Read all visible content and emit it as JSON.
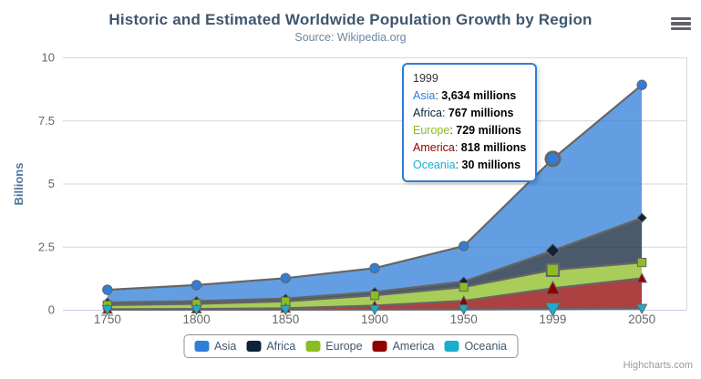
{
  "header": {
    "title": "Historic and Estimated Worldwide Population Growth by Region",
    "subtitle": "Source: Wikipedia.org"
  },
  "credits": "Highcharts.com",
  "chart_data": {
    "type": "area",
    "stacking": "normal",
    "title": "Historic and Estimated Worldwide Population Growth by Region",
    "subtitle": "Source: Wikipedia.org",
    "categories": [
      "1750",
      "1800",
      "1850",
      "1900",
      "1950",
      "1999",
      "2050"
    ],
    "xlabel": "",
    "ylabel": "Billions",
    "unit": "millions",
    "ylim": [
      0,
      10
    ],
    "yticks": [
      0,
      2.5,
      5,
      7.5,
      10
    ],
    "ytick_labels": [
      "0",
      "2.5",
      "5",
      "7.5",
      "10"
    ],
    "grid": "horizontal",
    "legend_position": "bottom",
    "hover_index": 5,
    "line_color": "#666666",
    "fill_opacity": 0.75,
    "series": [
      {
        "name": "Asia",
        "color": "#2f7ed8",
        "marker": "circle",
        "values": [
          502,
          635,
          809,
          947,
          1402,
          3634,
          5268
        ]
      },
      {
        "name": "Africa",
        "color": "#0d233a",
        "marker": "diamond",
        "values": [
          106,
          107,
          111,
          133,
          221,
          767,
          1766
        ]
      },
      {
        "name": "Europe",
        "color": "#8bbc21",
        "marker": "square",
        "values": [
          163,
          203,
          276,
          408,
          547,
          729,
          628
        ]
      },
      {
        "name": "America",
        "color": "#910000",
        "marker": "triangle",
        "values": [
          18,
          31,
          54,
          156,
          339,
          818,
          1201
        ]
      },
      {
        "name": "Oceania",
        "color": "#1aadce",
        "marker": "triangle-down",
        "values": [
          2,
          2,
          2,
          6,
          13,
          30,
          46
        ]
      }
    ]
  },
  "tooltip": {
    "header": "1999",
    "border_color": "#2f7ed8",
    "rows": [
      {
        "name": "Asia",
        "color": "#2f7ed8",
        "value": "3,634 millions"
      },
      {
        "name": "Africa",
        "color": "#0d233a",
        "value": "767 millions"
      },
      {
        "name": "Europe",
        "color": "#8bbc21",
        "value": "729 millions"
      },
      {
        "name": "America",
        "color": "#910000",
        "value": "818 millions"
      },
      {
        "name": "Oceania",
        "color": "#1aadce",
        "value": "30 millions"
      }
    ]
  },
  "legend": {
    "items": [
      {
        "label": "Asia",
        "color": "#2f7ed8"
      },
      {
        "label": "Africa",
        "color": "#0d233a"
      },
      {
        "label": "Europe",
        "color": "#8bbc21"
      },
      {
        "label": "America",
        "color": "#910000"
      },
      {
        "label": "Oceania",
        "color": "#1aadce"
      }
    ]
  },
  "colors": {
    "title_text": "#3E576F",
    "subtitle_text": "#6D869F",
    "axis_label_text": "#666666",
    "y_axis_title_text": "#4d759e",
    "grid_line": "#D6D6D6",
    "x_axis_line": "#C0D0E0",
    "legend_border": "#909090",
    "credits_text": "#999999"
  }
}
